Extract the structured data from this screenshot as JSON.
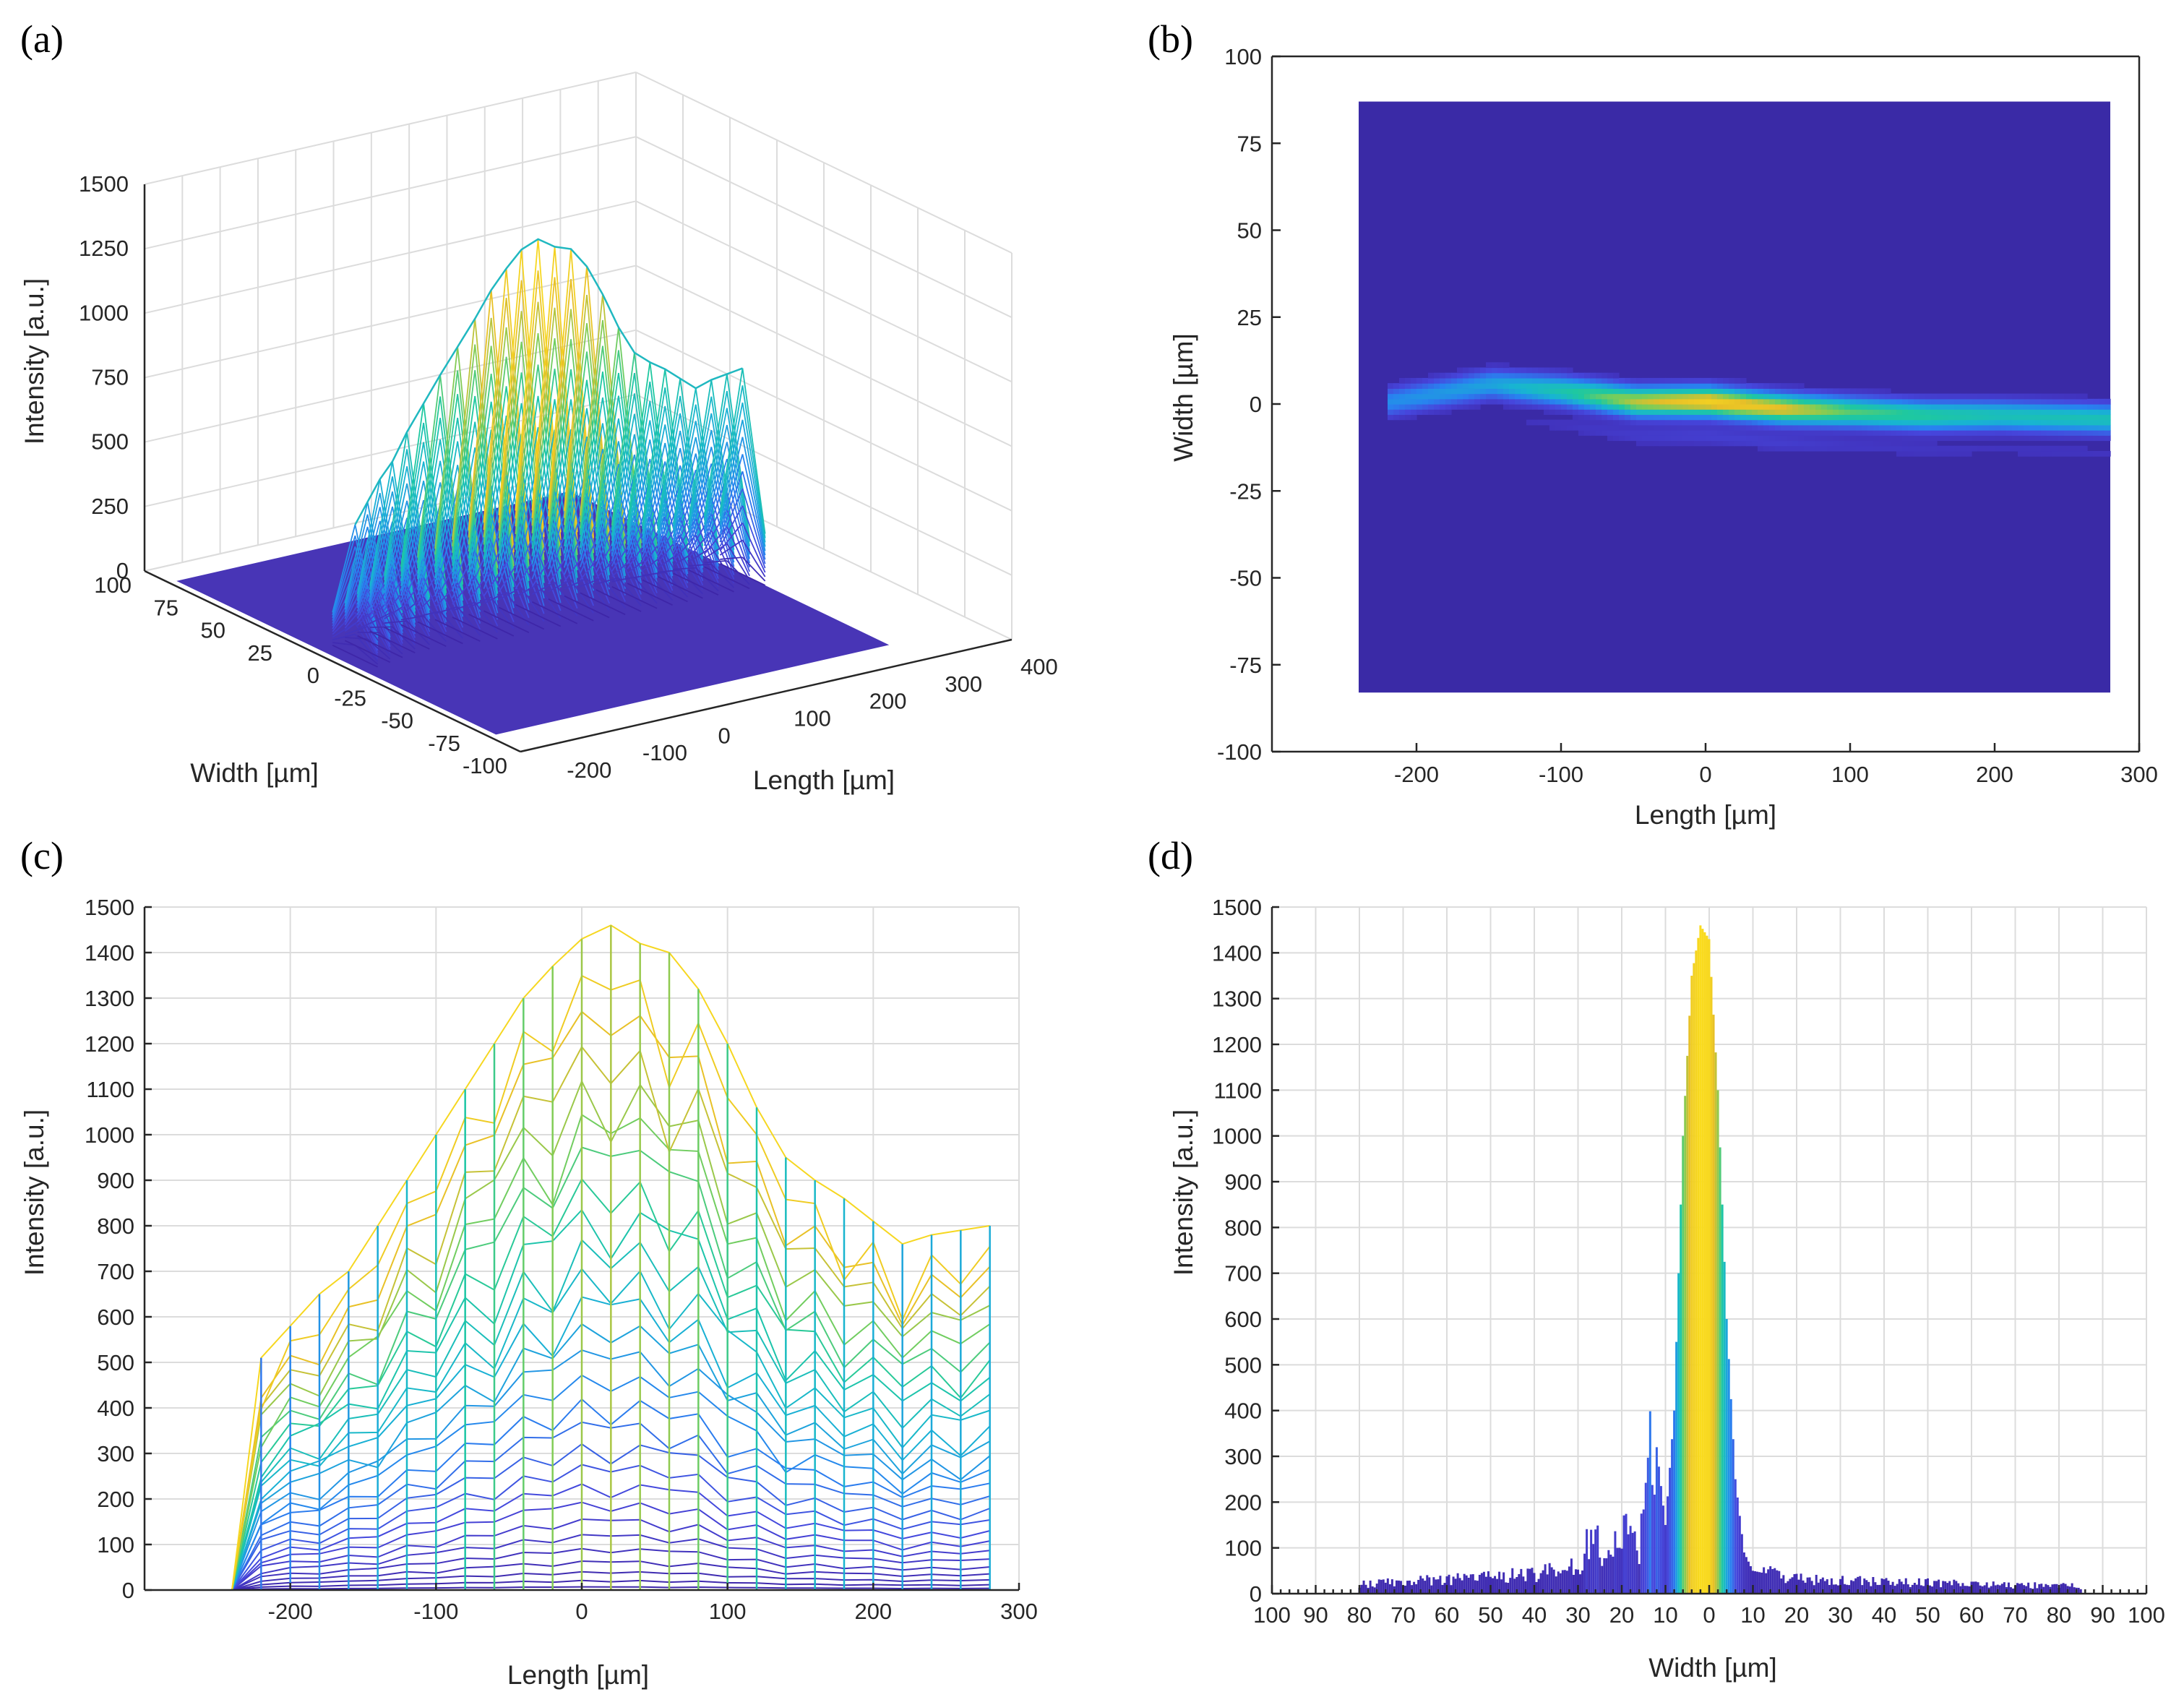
{
  "colors": {
    "viridis_low": "#3a20a0",
    "viridis_mid": "#17b8c8",
    "viridis_high": "#f8d21c",
    "background_b": "#3a2aa6"
  },
  "chart_data": [
    {
      "panel_label": "(a)",
      "type": "surface3d",
      "title": "",
      "xlabel": "Length [µm]",
      "ylabel": "Width [µm]",
      "zlabel": "Intensity [a.u.]",
      "x_ticks": [
        "-200",
        "-100",
        "0",
        "100",
        "200",
        "300",
        "400"
      ],
      "y_ticks": [
        "100",
        "75",
        "50",
        "25",
        "0",
        "-25",
        "-50",
        "-75",
        "-100"
      ],
      "z_ticks": [
        "0",
        "250",
        "500",
        "750",
        "1000",
        "1250",
        "1500"
      ],
      "xlim": [
        -250,
        400
      ],
      "ylim": [
        -100,
        100
      ],
      "zlim": [
        0,
        1500
      ],
      "grid": true
    },
    {
      "panel_label": "(b)",
      "type": "heatmap",
      "title": "",
      "xlabel": "Length [µm]",
      "ylabel": "Width [µm]",
      "x_ticks": [
        "-200",
        "-100",
        "0",
        "100",
        "200",
        "300"
      ],
      "y_ticks": [
        "100",
        "75",
        "50",
        "25",
        "0",
        "-25",
        "-50",
        "-75",
        "-100"
      ],
      "xlim": [
        -300,
        300
      ],
      "ylim": [
        -100,
        100
      ],
      "data_extent": {
        "length": [
          -240,
          280
        ],
        "width": [
          -83,
          87
        ]
      },
      "beam_center_width": {
        "x": [
          -220,
          -150,
          -100,
          -50,
          0,
          50,
          100,
          150,
          200,
          280
        ],
        "y": [
          0,
          5,
          3,
          0,
          0,
          -2,
          -3,
          -4,
          -4,
          -5
        ]
      },
      "peak_intensity": {
        "x": [
          -220,
          -150,
          -100,
          -50,
          0,
          50,
          100,
          150,
          200,
          280
        ],
        "y": [
          500,
          600,
          850,
          1200,
          1400,
          1300,
          1000,
          900,
          800,
          800
        ]
      }
    },
    {
      "panel_label": "(c)",
      "type": "line",
      "title": "",
      "xlabel": "Length [µm]",
      "ylabel": "Intensity [a.u.]",
      "x_ticks": [
        "-200",
        "-100",
        "0",
        "100",
        "200",
        "300"
      ],
      "y_ticks": [
        "0",
        "100",
        "200",
        "300",
        "400",
        "500",
        "600",
        "700",
        "800",
        "900",
        "1000",
        "1100",
        "1200",
        "1300",
        "1400",
        "1500"
      ],
      "xlim": [
        -300,
        300
      ],
      "ylim": [
        0,
        1500
      ],
      "grid": true,
      "envelope": {
        "x": [
          -240,
          -220,
          -200,
          -180,
          -160,
          -140,
          -120,
          -100,
          -80,
          -60,
          -40,
          -20,
          0,
          20,
          40,
          60,
          80,
          100,
          120,
          140,
          160,
          180,
          200,
          220,
          240,
          260,
          280
        ],
        "y": [
          0,
          510,
          580,
          650,
          700,
          800,
          900,
          1000,
          1100,
          1200,
          1300,
          1370,
          1430,
          1460,
          1420,
          1400,
          1320,
          1200,
          1060,
          950,
          900,
          860,
          810,
          760,
          780,
          790,
          800
        ]
      }
    },
    {
      "panel_label": "(d)",
      "type": "line",
      "title": "",
      "xlabel": "Width [µm]",
      "ylabel": "Intensity [a.u.]",
      "x_ticks": [
        "100",
        "90",
        "80",
        "70",
        "60",
        "50",
        "40",
        "30",
        "20",
        "10",
        "0",
        "10",
        "20",
        "30",
        "40",
        "50",
        "60",
        "70",
        "80",
        "90",
        "100"
      ],
      "y_ticks": [
        "0",
        "100",
        "200",
        "300",
        "400",
        "500",
        "600",
        "700",
        "800",
        "900",
        "1000",
        "1100",
        "1200",
        "1300",
        "1400",
        "1500"
      ],
      "xlim": [
        -100,
        100
      ],
      "ylim": [
        0,
        1500
      ],
      "grid": true,
      "profile": {
        "x": [
          -80,
          -60,
          -40,
          -30,
          -26,
          -24,
          -22,
          -20,
          -18,
          -16,
          -14,
          -12,
          -10,
          -8,
          -6,
          -4,
          -2,
          0,
          2,
          4,
          6,
          8,
          10,
          20,
          40,
          60,
          85
        ],
        "y": [
          20,
          30,
          40,
          60,
          130,
          60,
          130,
          160,
          130,
          60,
          290,
          320,
          150,
          400,
          1000,
          1350,
          1460,
          1430,
          1100,
          600,
          250,
          90,
          50,
          30,
          25,
          20,
          15
        ]
      }
    }
  ]
}
